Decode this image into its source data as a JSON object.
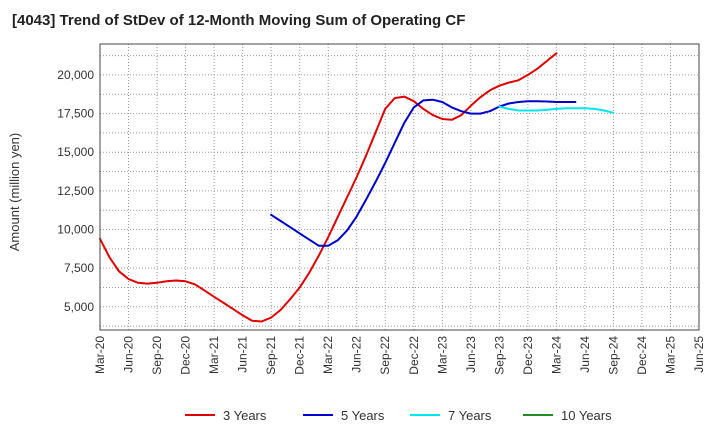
{
  "title": "[4043]  Trend of StDev of 12-Month Moving Sum of Operating CF",
  "chart_data": {
    "type": "line",
    "title": "[4043]  Trend of StDev of 12-Month Moving Sum of Operating CF",
    "xlabel": "",
    "ylabel": "Amount (million yen)",
    "x_ticks": [
      "Mar-20",
      "Jun-20",
      "Sep-20",
      "Dec-20",
      "Mar-21",
      "Jun-21",
      "Sep-21",
      "Dec-21",
      "Mar-22",
      "Jun-22",
      "Sep-22",
      "Dec-22",
      "Mar-23",
      "Jun-23",
      "Sep-23",
      "Dec-23",
      "Mar-24",
      "Jun-24",
      "Sep-24",
      "Dec-24",
      "Mar-25",
      "Jun-25"
    ],
    "y_ticks": [
      5000,
      7500,
      10000,
      12500,
      15000,
      17500,
      20000
    ],
    "y_tick_labels": [
      "5,000",
      "7,500",
      "10,000",
      "12,500",
      "15,000",
      "17,500",
      "20,000"
    ],
    "ylim": [
      3500,
      22000
    ],
    "grid": true,
    "legend_position": "bottom",
    "series": [
      {
        "name": "3 Years",
        "color": "#dd0000",
        "start_index": 0,
        "values": [
          9400,
          8200,
          7300,
          6800,
          6550,
          6500,
          6550,
          6650,
          6700,
          6650,
          6450,
          6050,
          5650,
          5250,
          4850,
          4450,
          4100,
          4050,
          4300,
          4800,
          5500,
          6250,
          7200,
          8300,
          9500,
          10800,
          12100,
          13400,
          14800,
          16300,
          17800,
          18500,
          18600,
          18300,
          17800,
          17400,
          17150,
          17100,
          17400,
          18000,
          18550,
          19000,
          19300,
          19500,
          19650,
          20000,
          20400,
          20900,
          21400
        ]
      },
      {
        "name": "5 Years",
        "color": "#0000cc",
        "start_index": 18,
        "values": [
          10950,
          10550,
          10150,
          9750,
          9350,
          8950,
          8950,
          9300,
          9950,
          10850,
          11950,
          13100,
          14300,
          15600,
          16900,
          17900,
          18350,
          18400,
          18250,
          17900,
          17650,
          17500,
          17500,
          17650,
          17950,
          18150,
          18250,
          18300,
          18300,
          18280,
          18250,
          18250,
          18250
        ]
      },
      {
        "name": "7 Years",
        "color": "#00e5ee",
        "start_index": 42,
        "values": [
          17950,
          17800,
          17700,
          17700,
          17700,
          17750,
          17800,
          17850,
          17850,
          17850,
          17800,
          17700,
          17550
        ]
      },
      {
        "name": "10 Years",
        "color": "#228b22",
        "start_index": 0,
        "values": []
      }
    ]
  }
}
